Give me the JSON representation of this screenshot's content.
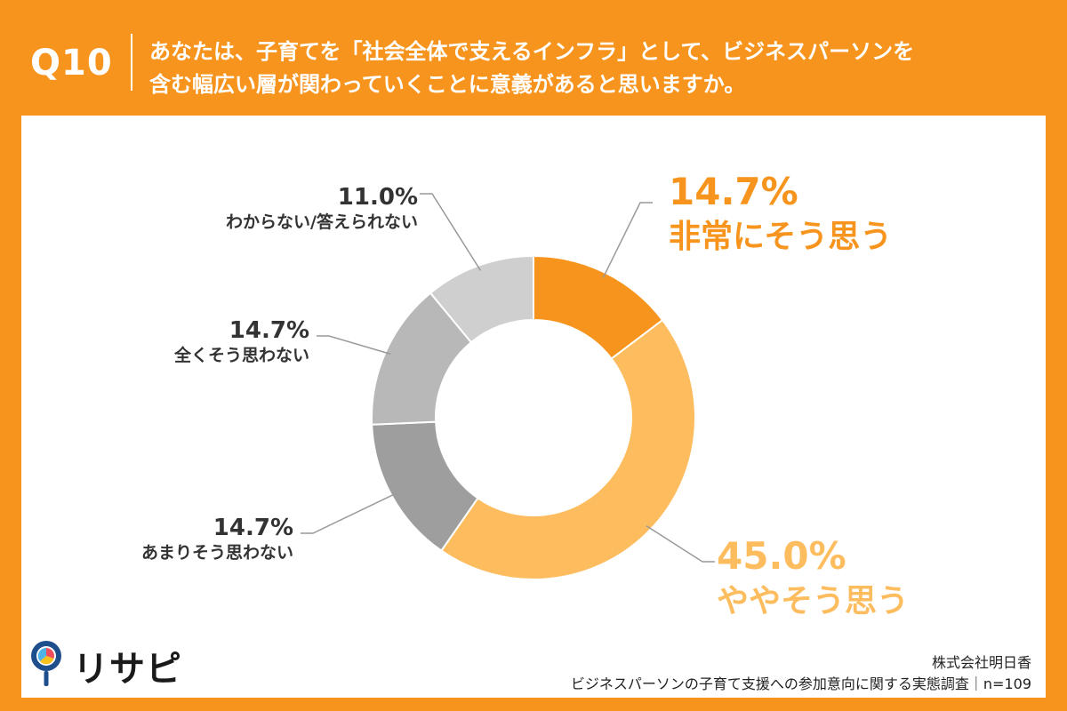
{
  "header": {
    "q_label": "Q10",
    "question_line1": "あなたは、子育てを「社会全体で支えるインフラ」として、ビジネスパーソンを",
    "question_line2": "含む幅広い層が関わっていくことに意義があると思いますか。"
  },
  "chart_data": {
    "type": "pie",
    "donut": true,
    "slices": [
      {
        "label": "非常にそう思う",
        "value": 14.7,
        "value_label": "14.7%",
        "color": "#f7941d",
        "emphasis": true
      },
      {
        "label": "ややそう思う",
        "value": 45.0,
        "value_label": "45.0%",
        "color": "#fdbd5f",
        "emphasis": true
      },
      {
        "label": "あまりそう思わない",
        "value": 14.7,
        "value_label": "14.7%",
        "color": "#9e9e9e",
        "emphasis": false
      },
      {
        "label": "全くそう思わない",
        "value": 14.7,
        "value_label": "14.7%",
        "color": "#b8b8b8",
        "emphasis": false
      },
      {
        "label": "わからない/答えられない",
        "value": 11.0,
        "value_label": "11.0%",
        "color": "#cfcfcf",
        "emphasis": false
      }
    ],
    "start": "top",
    "direction": "clockwise",
    "n": "n=109"
  },
  "colors": {
    "accent": "#f7941d",
    "emphasis_text": "#f7941d",
    "emphasis_text_light": "#fdbd5f",
    "muted_text": "#333333",
    "leader": "#999999"
  },
  "logo": {
    "text": "リサピー",
    "icon": "magnifier-pie-icon"
  },
  "source": {
    "company": "株式会社明日香",
    "survey": "ビジネスパーソンの子育て支援への参加意向に関する実態調査｜n=109"
  }
}
